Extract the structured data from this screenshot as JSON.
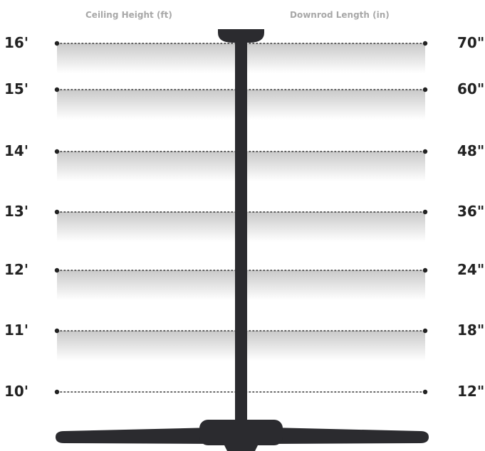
{
  "headers": {
    "left": "Ceiling Height (ft)",
    "right": "Downrod Length (in)"
  },
  "rows": [
    {
      "ceiling_height": "16'",
      "downrod_length": "70\""
    },
    {
      "ceiling_height": "15'",
      "downrod_length": "60\""
    },
    {
      "ceiling_height": "14'",
      "downrod_length": "48\""
    },
    {
      "ceiling_height": "13'",
      "downrod_length": "36\""
    },
    {
      "ceiling_height": "12'",
      "downrod_length": "24\""
    },
    {
      "ceiling_height": "11'",
      "downrod_length": "18\""
    },
    {
      "ceiling_height": "10'",
      "downrod_length": "12\""
    }
  ],
  "colors": {
    "fan": "#2b2b2f",
    "band_top": "#c9c9c9",
    "band_bottom": "#ffffff",
    "label": "#222222",
    "header": "#a8a8a8"
  },
  "icons": {
    "fan": "ceiling-fan-icon"
  }
}
